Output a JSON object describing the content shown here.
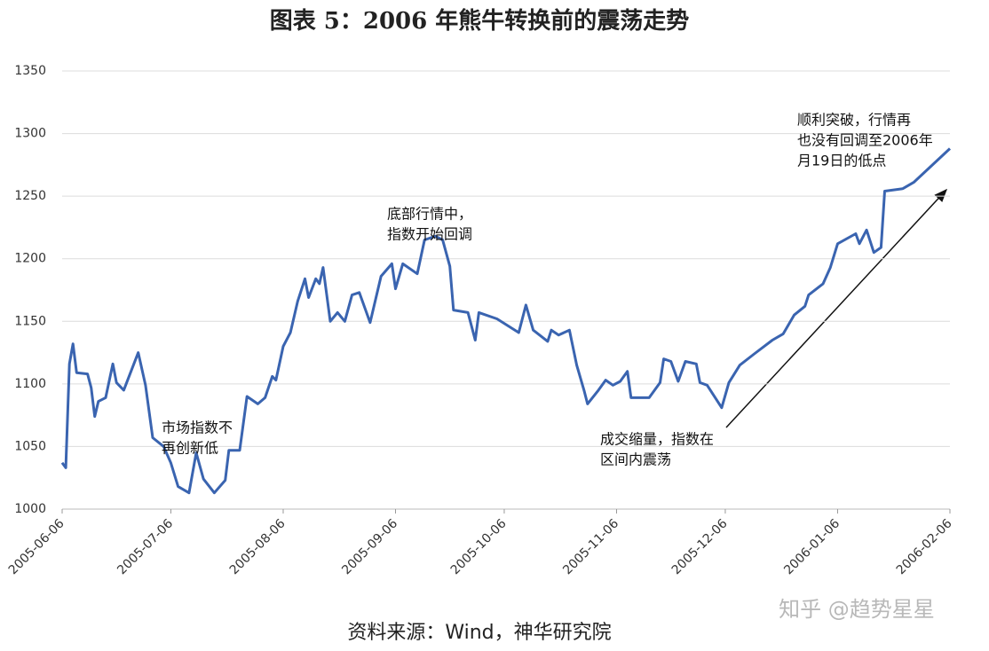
{
  "chart_data": {
    "type": "line",
    "title": "图表 5：2006 年熊牛转换前的震荡走势",
    "source": "资料来源：Wind，神华研究院",
    "watermark": "知乎 @趋势星星",
    "color": "#3a64b0",
    "grid": true,
    "xlim": [
      "2005-06-06",
      "2006-02-06"
    ],
    "xticks": [
      "2005-06-06",
      "2005-07-06",
      "2005-08-06",
      "2005-09-06",
      "2005-10-06",
      "2005-11-06",
      "2005-12-06",
      "2006-01-06",
      "2006-02-06"
    ],
    "ylim": [
      1000,
      1350
    ],
    "yticks": [
      1000,
      1050,
      1100,
      1150,
      1200,
      1250,
      1300,
      1350
    ],
    "x": [
      "2005-06-06",
      "2005-06-07",
      "2005-06-08",
      "2005-06-09",
      "2005-06-10",
      "2005-06-13",
      "2005-06-14",
      "2005-06-15",
      "2005-06-16",
      "2005-06-18",
      "2005-06-20",
      "2005-06-21",
      "2005-06-23",
      "2005-06-27",
      "2005-06-29",
      "2005-07-01",
      "2005-07-04",
      "2005-07-06",
      "2005-07-08",
      "2005-07-11",
      "2005-07-13",
      "2005-07-15",
      "2005-07-18",
      "2005-07-21",
      "2005-07-22",
      "2005-07-25",
      "2005-07-27",
      "2005-07-30",
      "2005-08-01",
      "2005-08-03",
      "2005-08-04",
      "2005-08-06",
      "2005-08-08",
      "2005-08-10",
      "2005-08-12",
      "2005-08-13",
      "2005-08-15",
      "2005-08-16",
      "2005-08-17",
      "2005-08-19",
      "2005-08-21",
      "2005-08-23",
      "2005-08-25",
      "2005-08-27",
      "2005-08-30",
      "2005-09-02",
      "2005-09-05",
      "2005-09-06",
      "2005-09-08",
      "2005-09-12",
      "2005-09-14",
      "2005-09-17",
      "2005-09-19",
      "2005-09-21",
      "2005-09-22",
      "2005-09-26",
      "2005-09-28",
      "2005-09-29",
      "2005-10-04",
      "2005-10-10",
      "2005-10-12",
      "2005-10-14",
      "2005-10-18",
      "2005-10-19",
      "2005-10-21",
      "2005-10-24",
      "2005-10-26",
      "2005-10-28",
      "2005-10-29",
      "2005-11-01",
      "2005-11-03",
      "2005-11-05",
      "2005-11-07",
      "2005-11-09",
      "2005-11-10",
      "2005-11-15",
      "2005-11-18",
      "2005-11-19",
      "2005-11-21",
      "2005-11-23",
      "2005-11-25",
      "2005-11-28",
      "2005-11-29",
      "2005-12-01",
      "2005-12-05",
      "2005-12-07",
      "2005-12-10",
      "2005-12-14",
      "2005-12-19",
      "2005-12-22",
      "2005-12-25",
      "2005-12-28",
      "2005-12-29",
      "2006-01-02",
      "2006-01-04",
      "2006-01-06",
      "2006-01-11",
      "2006-01-12",
      "2006-01-14",
      "2006-01-16",
      "2006-01-18",
      "2006-01-19",
      "2006-01-24",
      "2006-01-27",
      "2006-02-06"
    ],
    "values": [
      1037,
      1033,
      1116,
      1132,
      1109,
      1108,
      1097,
      1074,
      1086,
      1089,
      1116,
      1101,
      1095,
      1125,
      1099,
      1057,
      1050,
      1037,
      1018,
      1013,
      1045,
      1024,
      1013,
      1023,
      1047,
      1047,
      1090,
      1084,
      1089,
      1106,
      1103,
      1130,
      1141,
      1166,
      1184,
      1169,
      1184,
      1180,
      1193,
      1150,
      1157,
      1150,
      1171,
      1173,
      1149,
      1186,
      1196,
      1176,
      1196,
      1188,
      1215,
      1218,
      1215,
      1194,
      1159,
      1157,
      1135,
      1157,
      1152,
      1141,
      1163,
      1143,
      1134,
      1143,
      1139,
      1143,
      1115,
      1095,
      1084,
      1095,
      1103,
      1099,
      1102,
      1110,
      1089,
      1089,
      1101,
      1120,
      1118,
      1102,
      1118,
      1116,
      1101,
      1099,
      1081,
      1101,
      1115,
      1124,
      1135,
      1140,
      1155,
      1162,
      1171,
      1180,
      1193,
      1212,
      1220,
      1212,
      1223,
      1205,
      1209,
      1254,
      1256,
      1261,
      1288
    ],
    "annotations": [
      [
        "市场指数不",
        "再创新低"
      ],
      [
        "底部行情中，",
        "指数开始回调"
      ],
      [
        "成交缩量，指数在",
        "区间内震荡"
      ],
      [
        "顺利突破，行情再",
        "也没有回调至2006年",
        "月19日的低点"
      ]
    ]
  }
}
